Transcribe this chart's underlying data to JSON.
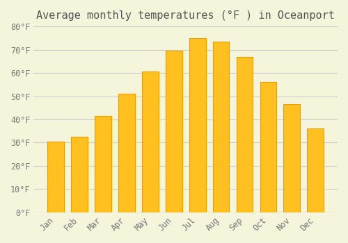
{
  "title": "Average monthly temperatures (°F ) in Oceanport",
  "months": [
    "Jan",
    "Feb",
    "Mar",
    "Apr",
    "May",
    "Jun",
    "Jul",
    "Aug",
    "Sep",
    "Oct",
    "Nov",
    "Dec"
  ],
  "values": [
    30.5,
    32.5,
    41.5,
    51.0,
    60.5,
    69.5,
    75.0,
    73.5,
    67.0,
    56.0,
    46.5,
    36.0
  ],
  "bar_color": "#FFC020",
  "bar_edge_color": "#E8A000",
  "background_color": "#F5F5DC",
  "grid_color": "#CCCCCC",
  "ylim": [
    0,
    80
  ],
  "yticks": [
    0,
    10,
    20,
    30,
    40,
    50,
    60,
    70,
    80
  ],
  "ytick_labels": [
    "0°F",
    "10°F",
    "20°F",
    "30°F",
    "40°F",
    "50°F",
    "60°F",
    "70°F",
    "80°F"
  ],
  "title_fontsize": 11,
  "tick_fontsize": 8.5,
  "title_color": "#555555",
  "tick_color": "#777777",
  "font_family": "monospace"
}
